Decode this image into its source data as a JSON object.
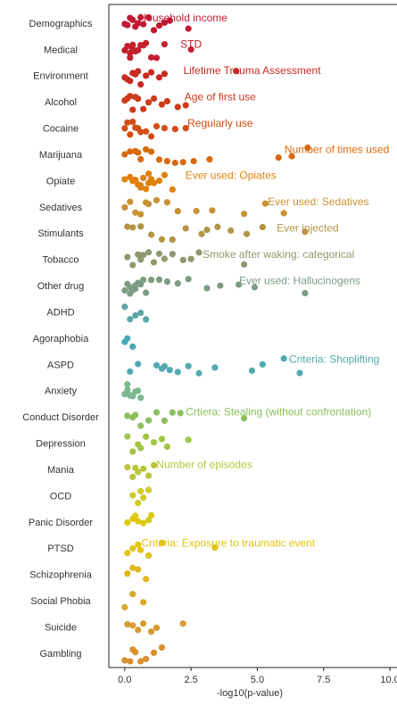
{
  "chart_data": {
    "type": "strip",
    "xlabel": "-log10(p-value)",
    "xlim": [
      -0.6,
      10.2
    ],
    "xticks": [
      {
        "value": 0,
        "label": "0.0"
      },
      {
        "value": 2.5,
        "label": "2.5"
      },
      {
        "value": 5,
        "label": "5.0"
      },
      {
        "value": 7.5,
        "label": "7.5"
      },
      {
        "value": 10,
        "label": "10.0"
      }
    ],
    "categories": [
      "Demographics",
      "Medical",
      "Environment",
      "Alcohol",
      "Cocaine",
      "Marijuana",
      "Opiate",
      "Sedatives",
      "Stimulants",
      "Tobacco",
      "Other drug",
      "ADHD",
      "Agoraphobia",
      "ASPD",
      "Anxiety",
      "Conduct Disorder",
      "Depression",
      "Mania",
      "OCD",
      "Panic Disorder",
      "PTSD",
      "Schizophrenia",
      "Social Phobia",
      "Suicide",
      "Gambling"
    ],
    "colors": [
      "#c01a34",
      "#c41f2c",
      "#c82a22",
      "#cc3a1a",
      "#d24e14",
      "#d86a10",
      "#e0820c",
      "#c99232",
      "#b39444",
      "#8e9a6e",
      "#7e9c84",
      "#5aa6a4",
      "#46aab4",
      "#52aab0",
      "#7ab890",
      "#8cbf5c",
      "#a4c444",
      "#b8c638",
      "#cccc22",
      "#dcc810",
      "#e2c40e",
      "#e0b81c",
      "#daa828",
      "#d89a2e",
      "#d8902e"
    ],
    "values": [
      [
        0.0,
        0.1,
        0.2,
        0.3,
        0.5,
        0.7,
        0.9,
        1.1,
        1.3,
        1.5,
        1.7,
        2.4,
        0.4,
        0.6
      ],
      [
        0.0,
        0.1,
        0.2,
        0.3,
        0.4,
        0.5,
        0.6,
        0.8,
        1.0,
        1.2,
        1.5,
        2.5,
        0.2,
        0.7,
        0.3
      ],
      [
        0.0,
        0.1,
        0.3,
        0.5,
        0.6,
        0.8,
        1.0,
        1.3,
        1.5,
        4.2,
        0.2,
        0.4
      ],
      [
        0.0,
        0.2,
        0.3,
        0.5,
        0.7,
        0.9,
        1.1,
        1.4,
        1.6,
        2.0,
        2.3,
        0.4,
        0.1
      ],
      [
        0.0,
        0.1,
        0.3,
        0.4,
        0.6,
        0.8,
        1.0,
        1.2,
        1.5,
        1.9,
        2.3,
        0.2,
        0.5
      ],
      [
        0.0,
        0.2,
        0.4,
        0.6,
        0.8,
        1.0,
        1.3,
        1.6,
        1.9,
        2.2,
        2.6,
        3.2,
        5.8,
        6.3,
        6.9,
        0.5
      ],
      [
        0.0,
        0.2,
        0.4,
        0.5,
        0.6,
        0.7,
        0.8,
        0.9,
        1.0,
        1.1,
        1.3,
        1.5,
        1.8,
        0.3,
        0.6,
        0.9
      ],
      [
        0.0,
        0.2,
        0.4,
        0.6,
        0.9,
        1.2,
        1.6,
        2.0,
        2.7,
        3.3,
        4.5,
        5.3,
        6.0,
        0.8
      ],
      [
        0.1,
        0.3,
        0.6,
        1.0,
        1.4,
        1.8,
        2.3,
        2.9,
        3.5,
        4.0,
        4.6,
        5.2,
        6.8,
        3.1
      ],
      [
        0.1,
        0.3,
        0.5,
        0.7,
        0.9,
        1.1,
        1.3,
        1.5,
        1.8,
        2.2,
        2.5,
        2.8,
        4.5,
        0.6
      ],
      [
        0.0,
        0.1,
        0.2,
        0.3,
        0.4,
        0.5,
        0.6,
        0.7,
        0.8,
        1.0,
        1.3,
        1.6,
        2.0,
        2.4,
        3.1,
        3.6,
        4.3,
        4.9,
        6.8,
        0.2,
        0.4
      ],
      [
        0.0,
        0.2,
        0.4,
        0.6,
        0.8
      ],
      [
        0.0,
        0.1,
        0.3
      ],
      [
        0.2,
        0.5,
        1.2,
        1.4,
        1.7,
        2.0,
        2.4,
        2.8,
        3.4,
        4.8,
        5.2,
        6.0,
        6.6,
        1.5
      ],
      [
        0.0,
        0.1,
        0.2,
        0.3,
        0.4,
        0.5,
        0.6,
        0.2,
        0.1
      ],
      [
        0.1,
        0.3,
        0.6,
        0.9,
        1.2,
        1.5,
        1.8,
        2.1,
        4.5,
        0.4
      ],
      [
        0.1,
        0.3,
        0.5,
        0.8,
        1.1,
        1.4,
        1.6,
        2.4,
        0.6
      ],
      [
        0.1,
        0.3,
        0.5,
        0.7,
        0.9,
        1.1,
        0.4
      ],
      [
        0.3,
        0.5,
        0.7,
        0.9,
        0.6
      ],
      [
        0.1,
        0.3,
        0.5,
        0.7,
        0.9,
        1.0,
        0.4
      ],
      [
        0.1,
        0.3,
        0.6,
        0.9,
        1.4,
        3.4,
        0.5
      ],
      [
        0.1,
        0.3,
        0.5,
        0.8
      ],
      [
        0.0,
        0.3,
        0.7
      ],
      [
        0.1,
        0.3,
        0.7,
        1.0,
        1.2,
        2.2,
        0.5
      ],
      [
        0.0,
        0.2,
        0.4,
        0.6,
        0.8,
        1.1,
        1.4,
        0.3
      ]
    ],
    "annotations": [
      {
        "text": "Household income",
        "category": "Demographics",
        "x": 2.2
      },
      {
        "text": "STD",
        "category": "Medical",
        "x": 2.5
      },
      {
        "text": "Lifetime Trauma Assessment",
        "category": "Environment",
        "x": 4.8
      },
      {
        "text": "Age of first use",
        "category": "Alcohol",
        "x": 3.6
      },
      {
        "text": "Regularly use",
        "category": "Cocaine",
        "x": 3.6
      },
      {
        "text": "Number of times used",
        "category": "Marijuana",
        "x": 8.0
      },
      {
        "text": "Ever used: Opiates",
        "category": "Opiate",
        "x": 4.0
      },
      {
        "text": "Ever used: Sedatives",
        "category": "Sedatives",
        "x": 7.3
      },
      {
        "text": "Ever injected",
        "category": "Stimulants",
        "x": 6.9
      },
      {
        "text": "Smoke after waking: categorical",
        "category": "Tobacco",
        "x": 5.8
      },
      {
        "text": "Ever used: Hallucinogens",
        "category": "Other drug",
        "x": 6.6
      },
      {
        "text": "Criteria: Shoplifting",
        "category": "ASPD",
        "x": 7.9
      },
      {
        "text": "Crtiera: Stealing (without confrontation)",
        "category": "Conduct Disorder",
        "x": 5.8
      },
      {
        "text": "Number of episodes",
        "category": "Mania",
        "x": 3.0
      },
      {
        "text": "Criteria: Exposure to traumatic event",
        "category": "PTSD",
        "x": 3.9
      }
    ]
  }
}
